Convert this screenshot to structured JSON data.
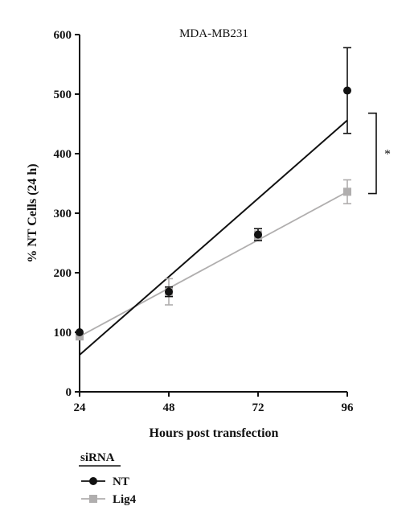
{
  "chart_data": {
    "type": "scatter",
    "title": "MDA-MB231",
    "xlabel": "Hours post transfection",
    "ylabel": "% NT Cells (24 h)",
    "x_ticks": [
      "24",
      "48",
      "72",
      "96"
    ],
    "y_ticks": [
      "0",
      "100",
      "200",
      "300",
      "400",
      "500",
      "600"
    ],
    "xlim": [
      24,
      96
    ],
    "ylim": [
      0,
      600
    ],
    "grid": false,
    "series": [
      {
        "name": "NT",
        "color": "#111111",
        "marker": "circle",
        "x": [
          24,
          48,
          72,
          96
        ],
        "y": [
          100,
          168,
          264,
          506
        ],
        "error": [
          0,
          8,
          10,
          72
        ],
        "fit": [
          [
            24,
            62
          ],
          [
            96,
            456
          ]
        ]
      },
      {
        "name": "Lig4",
        "color": "#b0aeae",
        "marker": "square",
        "x": [
          24,
          48,
          72,
          96
        ],
        "y": [
          93,
          168,
          262,
          336
        ],
        "error": [
          0,
          22,
          8,
          20
        ],
        "fit": [
          [
            24,
            93
          ],
          [
            96,
            336
          ]
        ]
      }
    ],
    "legend": {
      "title": "siRNA",
      "position": "bottom-left"
    },
    "annotation": {
      "text": "*",
      "between": [
        "NT",
        "Lig4"
      ],
      "at_x": 96,
      "y_range": [
        333,
        468
      ]
    }
  }
}
